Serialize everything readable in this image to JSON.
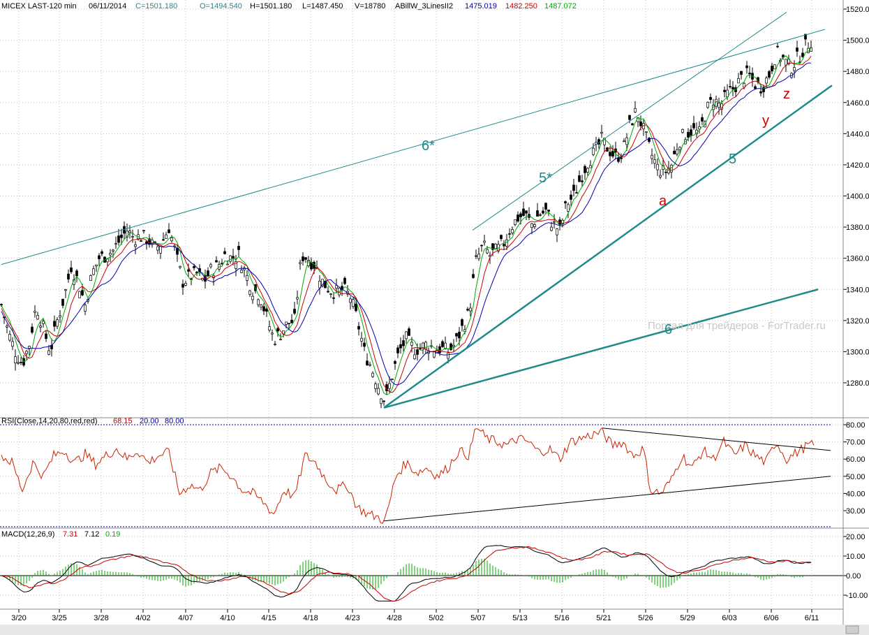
{
  "header": {
    "symbol": "MICEX LAST-120 min",
    "date": "06/11/2014",
    "close": "C=1501.180",
    "open": "O=1494.540",
    "high": "H=1501.180",
    "low": "L=1487.450",
    "volume": "V=18780",
    "indicator": "ABillW_3LinesII2",
    "ind_v1": "1475.019",
    "ind_v2": "1482.250",
    "ind_v3": "1487.072"
  },
  "rsi_header": {
    "label": "RSI(Close,14,20,80,red,red)",
    "value": "68.15",
    "low": "20.00",
    "high": "80.00"
  },
  "macd_header": {
    "label": "MACD(12,26,9)",
    "v1": "7.31",
    "v2": "7.12",
    "v3": "0.19"
  },
  "watermark": "Портал для трейдеров - ForTrader.ru",
  "annotations": {
    "six_star": "6*",
    "five_star": "5*",
    "five": "5",
    "six": "6",
    "a": "a",
    "y": "y",
    "z": "z"
  },
  "colors": {
    "trendline": "#1f8a8a",
    "green": "#00aa00",
    "red": "#cc0000",
    "blue": "#0000aa",
    "rsi": "#cc2200",
    "macd_green": "#00aa00"
  },
  "chart_data": [
    {
      "type": "candlestick",
      "title": "MICEX LAST-120 min",
      "ylim": [
        1265,
        1525
      ],
      "yticks": [
        "1520.00",
        "1500.00",
        "1480.00",
        "1460.00",
        "1440.00",
        "1420.00",
        "1400.00",
        "1380.00",
        "1360.00",
        "1340.00",
        "1320.00",
        "1300.00",
        "1280.00"
      ],
      "yticks_values": [
        1520,
        1500,
        1480,
        1460,
        1440,
        1420,
        1400,
        1380,
        1360,
        1340,
        1320,
        1300,
        1280
      ],
      "xticks": [
        "3/20",
        "3/25",
        "3/28",
        "4/02",
        "4/07",
        "4/10",
        "4/15",
        "4/18",
        "4/23",
        "4/28",
        "5/02",
        "5/07",
        "5/13",
        "5/16",
        "5/21",
        "5/26",
        "5/29",
        "6/03",
        "6/06",
        "6/11"
      ],
      "close_path": [
        [
          0,
          1330
        ],
        [
          10,
          1312
        ],
        [
          20,
          1300
        ],
        [
          30,
          1292
        ],
        [
          40,
          1305
        ],
        [
          50,
          1330
        ],
        [
          60,
          1315
        ],
        [
          70,
          1300
        ],
        [
          80,
          1320
        ],
        [
          90,
          1335
        ],
        [
          100,
          1355
        ],
        [
          110,
          1345
        ],
        [
          120,
          1330
        ],
        [
          130,
          1350
        ],
        [
          140,
          1360
        ],
        [
          150,
          1362
        ],
        [
          160,
          1365
        ],
        [
          170,
          1372
        ],
        [
          180,
          1378
        ],
        [
          190,
          1373
        ],
        [
          200,
          1374
        ],
        [
          210,
          1372
        ],
        [
          220,
          1366
        ],
        [
          230,
          1370
        ],
        [
          240,
          1380
        ],
        [
          250,
          1362
        ],
        [
          260,
          1345
        ],
        [
          270,
          1348
        ],
        [
          280,
          1350
        ],
        [
          290,
          1345
        ],
        [
          300,
          1352
        ],
        [
          310,
          1355
        ],
        [
          320,
          1362
        ],
        [
          330,
          1360
        ],
        [
          340,
          1362
        ],
        [
          350,
          1350
        ],
        [
          360,
          1340
        ],
        [
          370,
          1337
        ],
        [
          380,
          1322
        ],
        [
          390,
          1308
        ],
        [
          400,
          1312
        ],
        [
          410,
          1318
        ],
        [
          420,
          1320
        ],
        [
          430,
          1362
        ],
        [
          440,
          1360
        ],
        [
          450,
          1355
        ],
        [
          460,
          1345
        ],
        [
          470,
          1340
        ],
        [
          480,
          1338
        ],
        [
          490,
          1340
        ],
        [
          500,
          1335
        ],
        [
          510,
          1320
        ],
        [
          520,
          1300
        ],
        [
          530,
          1290
        ],
        [
          540,
          1278
        ],
        [
          550,
          1268
        ],
        [
          560,
          1285
        ],
        [
          570,
          1300
        ],
        [
          580,
          1308
        ],
        [
          590,
          1302
        ],
        [
          600,
          1302
        ],
        [
          610,
          1305
        ],
        [
          620,
          1302
        ],
        [
          630,
          1302
        ],
        [
          640,
          1300
        ],
        [
          650,
          1305
        ],
        [
          660,
          1315
        ],
        [
          670,
          1325
        ],
        [
          680,
          1358
        ],
        [
          690,
          1368
        ],
        [
          700,
          1362
        ],
        [
          710,
          1365
        ],
        [
          720,
          1370
        ],
        [
          730,
          1380
        ],
        [
          740,
          1386
        ],
        [
          750,
          1388
        ],
        [
          760,
          1382
        ],
        [
          770,
          1388
        ],
        [
          780,
          1390
        ],
        [
          790,
          1382
        ],
        [
          800,
          1378
        ],
        [
          810,
          1395
        ],
        [
          820,
          1400
        ],
        [
          830,
          1412
        ],
        [
          840,
          1422
        ],
        [
          850,
          1428
        ],
        [
          860,
          1436
        ],
        [
          870,
          1430
        ],
        [
          880,
          1425
        ],
        [
          890,
          1428
        ],
        [
          900,
          1445
        ],
        [
          910,
          1455
        ],
        [
          920,
          1442
        ],
        [
          930,
          1428
        ],
        [
          940,
          1418
        ],
        [
          950,
          1415
        ],
        [
          960,
          1420
        ],
        [
          970,
          1435
        ],
        [
          980,
          1440
        ],
        [
          990,
          1442
        ],
        [
          1000,
          1440
        ],
        [
          1010,
          1455
        ],
        [
          1020,
          1462
        ],
        [
          1030,
          1458
        ],
        [
          1040,
          1465
        ],
        [
          1050,
          1470
        ],
        [
          1060,
          1475
        ],
        [
          1070,
          1478
        ],
        [
          1080,
          1472
        ],
        [
          1090,
          1470
        ],
        [
          1100,
          1478
        ],
        [
          1110,
          1492
        ],
        [
          1120,
          1488
        ],
        [
          1130,
          1482
        ],
        [
          1140,
          1488
        ],
        [
          1150,
          1495
        ],
        [
          1160,
          1500
        ]
      ],
      "upper_trendline": [
        [
          0,
          1356
        ],
        [
          1180,
          1507
        ]
      ],
      "trendline_5star": [
        [
          675,
          1378
        ],
        [
          1125,
          1518
        ]
      ],
      "trendline_5": [
        [
          548,
          1264
        ],
        [
          1190,
          1471
        ]
      ],
      "trendline_6": [
        [
          548,
          1264
        ],
        [
          1170,
          1340
        ]
      ]
    },
    {
      "type": "line",
      "title": "RSI(Close,14,20,80,red,red)",
      "ylim": [
        20,
        85
      ],
      "yticks": [
        "80.00",
        "70.00",
        "60.00",
        "50.00",
        "40.00",
        "30.00"
      ],
      "yticks_values": [
        80,
        70,
        60,
        50,
        40,
        30
      ],
      "levels": [
        80,
        20
      ],
      "values_path": [
        [
          0,
          62
        ],
        [
          15,
          58
        ],
        [
          30,
          42
        ],
        [
          45,
          58
        ],
        [
          60,
          50
        ],
        [
          75,
          62
        ],
        [
          90,
          65
        ],
        [
          105,
          58
        ],
        [
          120,
          63
        ],
        [
          135,
          57
        ],
        [
          150,
          62
        ],
        [
          165,
          66
        ],
        [
          180,
          60
        ],
        [
          195,
          65
        ],
        [
          210,
          58
        ],
        [
          225,
          62
        ],
        [
          240,
          64
        ],
        [
          255,
          40
        ],
        [
          270,
          45
        ],
        [
          285,
          42
        ],
        [
          300,
          52
        ],
        [
          315,
          55
        ],
        [
          330,
          50
        ],
        [
          345,
          42
        ],
        [
          360,
          40
        ],
        [
          375,
          35
        ],
        [
          390,
          28
        ],
        [
          405,
          42
        ],
        [
          420,
          38
        ],
        [
          435,
          62
        ],
        [
          450,
          58
        ],
        [
          465,
          48
        ],
        [
          480,
          42
        ],
        [
          495,
          45
        ],
        [
          510,
          32
        ],
        [
          525,
          28
        ],
        [
          540,
          26
        ],
        [
          550,
          24
        ],
        [
          565,
          50
        ],
        [
          580,
          58
        ],
        [
          595,
          52
        ],
        [
          610,
          55
        ],
        [
          625,
          50
        ],
        [
          640,
          55
        ],
        [
          655,
          65
        ],
        [
          670,
          62
        ],
        [
          680,
          79
        ],
        [
          695,
          72
        ],
        [
          710,
          70
        ],
        [
          725,
          68
        ],
        [
          740,
          72
        ],
        [
          755,
          70
        ],
        [
          770,
          64
        ],
        [
          785,
          66
        ],
        [
          800,
          60
        ],
        [
          815,
          70
        ],
        [
          830,
          72
        ],
        [
          845,
          74
        ],
        [
          860,
          76
        ],
        [
          875,
          68
        ],
        [
          890,
          70
        ],
        [
          905,
          62
        ],
        [
          920,
          66
        ],
        [
          930,
          42
        ],
        [
          945,
          40
        ],
        [
          960,
          48
        ],
        [
          975,
          62
        ],
        [
          990,
          55
        ],
        [
          1005,
          65
        ],
        [
          1020,
          60
        ],
        [
          1035,
          70
        ],
        [
          1050,
          62
        ],
        [
          1065,
          68
        ],
        [
          1080,
          62
        ],
        [
          1095,
          58
        ],
        [
          1110,
          70
        ],
        [
          1125,
          60
        ],
        [
          1140,
          64
        ],
        [
          1155,
          68
        ],
        [
          1165,
          68
        ]
      ],
      "trendline_top": [
        [
          862,
          78
        ],
        [
          1188,
          65
        ]
      ],
      "trendline_bottom": [
        [
          548,
          24
        ],
        [
          1188,
          50
        ]
      ]
    },
    {
      "type": "line",
      "title": "MACD(12,26,9)",
      "ylim": [
        -14,
        24
      ],
      "yticks": [
        "20.00",
        "10.00",
        "0.00",
        "-10.00"
      ],
      "yticks_values": [
        20,
        10,
        0,
        -10
      ]
    }
  ]
}
